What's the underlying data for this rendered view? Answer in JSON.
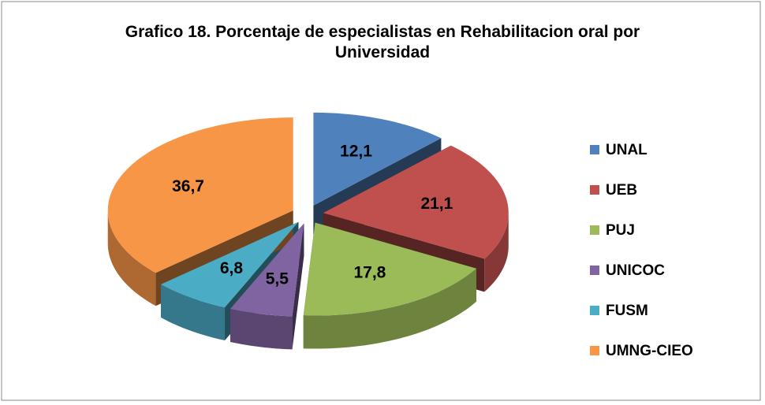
{
  "chart_data": {
    "type": "pie",
    "title": "Grafico 18. Porcentaje de especialistas en Rehabilitacion oral por Universidad",
    "categories": [
      "UNAL",
      "UEB",
      "PUJ",
      "UNICOC",
      "FUSM",
      "UMNG-CIEO"
    ],
    "values": [
      12.1,
      21.1,
      17.8,
      5.5,
      6.8,
      36.7
    ],
    "value_labels": [
      "12,1",
      "21,1",
      "17,8",
      "5,5",
      "6,8",
      "36,7"
    ],
    "colors": [
      "#4f81bd",
      "#c0504d",
      "#9bbb59",
      "#8064a2",
      "#4bacc6",
      "#f79646"
    ],
    "legend": "right"
  }
}
